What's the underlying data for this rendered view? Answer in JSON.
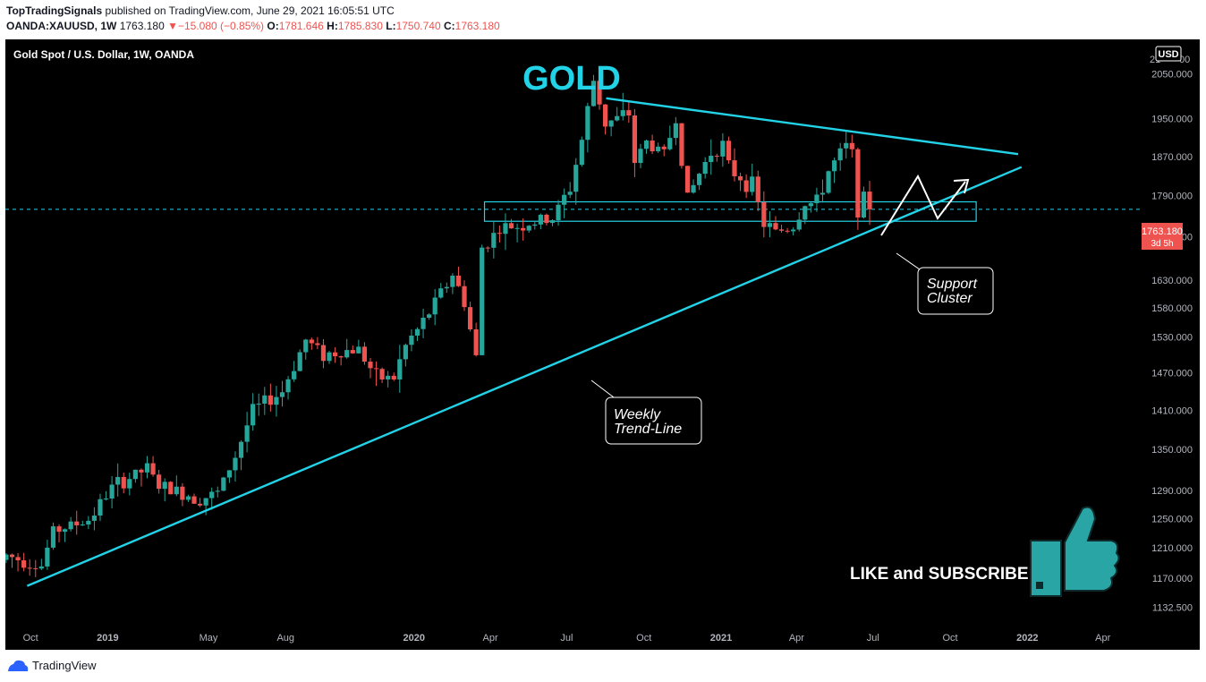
{
  "header": {
    "author": "TopTradingSignals",
    "published_text": "published on TradingView.com, June 29, 2021 16:05:51 UTC",
    "symbol": "OANDA:XAUUSD, 1W",
    "last_price": "1763.180",
    "change_arrow": "▼",
    "change": "−15.080 (−0.85%)",
    "open_label": "O:",
    "open": "1781.646",
    "high_label": "H:",
    "high": "1785.830",
    "low_label": "L:",
    "low": "1750.740",
    "close_label": "C:",
    "close": "1763.180"
  },
  "chart": {
    "instrument_title": "Gold Spot / U.S. Dollar, 1W, OANDA",
    "currency_badge": "USD",
    "top_partial_label": "21",
    "top_partial_label_tail": "00",
    "price_tag": "1763.180",
    "price_tag_timer": "3d 5h",
    "annotation_title": "GOLD",
    "annotation_support": [
      "Support",
      "Cluster"
    ],
    "annotation_trendline": [
      "Weekly",
      "Trend-Line"
    ],
    "call_to_action": "LIKE and SUBSCRIBE",
    "colors": {
      "background": "#000000",
      "up": "#26a69a",
      "down": "#ef5350",
      "trendline": "#22d3e8",
      "title": "#22d3e8"
    }
  },
  "chart_data": {
    "type": "candlestick",
    "title": "Gold Spot / U.S. Dollar, 1W, OANDA",
    "y_scale": "log",
    "ylim": [
      1100,
      2130
    ],
    "x_range": [
      "2018-09-01",
      "2022-05-15"
    ],
    "y_ticks": [
      "2050.000",
      "1950.000",
      "1870.000",
      "1790.000",
      "1710.000",
      "1630.000",
      "1580.000",
      "1530.000",
      "1470.000",
      "1410.000",
      "1350.000",
      "1290.000",
      "1250.000",
      "1210.000",
      "1170.000",
      "1132.500"
    ],
    "x_ticks": [
      {
        "label": "Oct",
        "date": "2018-10-01",
        "bold": false
      },
      {
        "label": "2019",
        "date": "2019-01-01",
        "bold": true
      },
      {
        "label": "May",
        "date": "2019-05-01",
        "bold": false
      },
      {
        "label": "Aug",
        "date": "2019-08-01",
        "bold": false
      },
      {
        "label": "2020",
        "date": "2020-01-01",
        "bold": true
      },
      {
        "label": "Apr",
        "date": "2020-04-01",
        "bold": false
      },
      {
        "label": "Jul",
        "date": "2020-07-01",
        "bold": false
      },
      {
        "label": "Oct",
        "date": "2020-10-01",
        "bold": false
      },
      {
        "label": "2021",
        "date": "2021-01-01",
        "bold": true
      },
      {
        "label": "Apr",
        "date": "2021-04-01",
        "bold": false
      },
      {
        "label": "Jul",
        "date": "2021-07-01",
        "bold": false
      },
      {
        "label": "Oct",
        "date": "2021-10-01",
        "bold": false
      },
      {
        "label": "2022",
        "date": "2022-01-01",
        "bold": true
      },
      {
        "label": "Apr",
        "date": "2022-04-01",
        "bold": false
      }
    ],
    "last_price": 1763.18,
    "weekly_close_anchors": [
      [
        "2018-09-02",
        1200
      ],
      [
        "2018-10-14",
        1186
      ],
      [
        "2018-10-28",
        1233
      ],
      [
        "2018-12-09",
        1248
      ],
      [
        "2019-01-06",
        1294
      ],
      [
        "2019-02-17",
        1322
      ],
      [
        "2019-03-03",
        1296
      ],
      [
        "2019-04-21",
        1278
      ],
      [
        "2019-05-12",
        1286
      ],
      [
        "2019-06-02",
        1340
      ],
      [
        "2019-06-23",
        1410
      ],
      [
        "2019-07-28",
        1440
      ],
      [
        "2019-08-25",
        1525
      ],
      [
        "2019-09-15",
        1500
      ],
      [
        "2019-10-27",
        1510
      ],
      [
        "2019-11-17",
        1462
      ],
      [
        "2019-12-08",
        1462
      ],
      [
        "2019-12-22",
        1515
      ],
      [
        "2020-01-12",
        1555
      ],
      [
        "2020-02-16",
        1640
      ],
      [
        "2020-03-01",
        1590
      ],
      [
        "2020-03-15",
        1495
      ],
      [
        "2020-03-22",
        1690
      ],
      [
        "2020-04-12",
        1725
      ],
      [
        "2020-05-17",
        1735
      ],
      [
        "2020-06-14",
        1745
      ],
      [
        "2020-07-05",
        1805
      ],
      [
        "2020-07-19",
        1905
      ],
      [
        "2020-08-02",
        2035
      ],
      [
        "2020-08-16",
        1940
      ],
      [
        "2020-09-13",
        1960
      ],
      [
        "2020-09-20",
        1860
      ],
      [
        "2020-10-04",
        1900
      ],
      [
        "2020-10-25",
        1875
      ],
      [
        "2020-11-08",
        1950
      ],
      [
        "2020-11-22",
        1785
      ],
      [
        "2020-12-06",
        1835
      ],
      [
        "2020-12-20",
        1880
      ],
      [
        "2021-01-03",
        1895
      ],
      [
        "2021-01-10",
        1845
      ],
      [
        "2021-02-07",
        1810
      ],
      [
        "2021-02-21",
        1735
      ],
      [
        "2021-03-07",
        1720
      ],
      [
        "2021-03-28",
        1730
      ],
      [
        "2021-04-11",
        1775
      ],
      [
        "2021-04-25",
        1775
      ],
      [
        "2021-05-09",
        1840
      ],
      [
        "2021-05-30",
        1890
      ],
      [
        "2021-06-06",
        1875
      ],
      [
        "2021-06-13",
        1768
      ],
      [
        "2021-06-20",
        1778
      ],
      [
        "2021-06-27",
        1763
      ]
    ],
    "lines": [
      {
        "name": "weekly trend-line",
        "from": [
          "2018-09-27",
          1160
        ],
        "to": [
          "2021-12-25",
          1848
        ]
      },
      {
        "name": "upper trend-line",
        "from": [
          "2020-08-17",
          1995
        ],
        "to": [
          "2021-12-21",
          1875
        ]
      },
      {
        "name": "support cluster zone",
        "y_range": [
          1740,
          1778
        ],
        "x_range": [
          "2020-03-25",
          "2021-11-01"
        ]
      }
    ]
  }
}
